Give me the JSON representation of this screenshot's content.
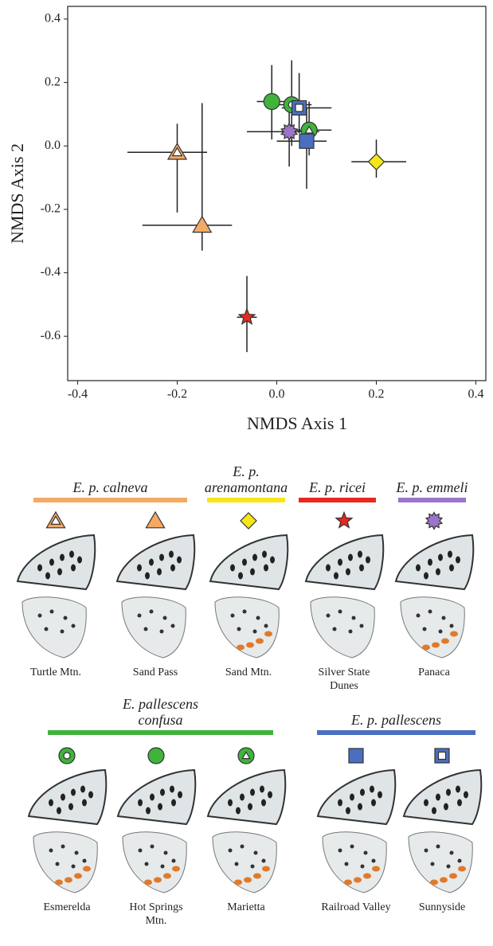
{
  "chart_data": {
    "type": "scatter",
    "x_label": "NMDS Axis 1",
    "y_label": "NMDS Axis 2",
    "xlim": [
      -0.42,
      0.42
    ],
    "ylim": [
      -0.74,
      0.44
    ],
    "xticks": [
      -0.4,
      -0.2,
      {
        "value": 0,
        "label": "0.0"
      },
      0.2,
      0.4
    ],
    "yticks": [
      0.4,
      0.2,
      {
        "value": 0,
        "label": "0.0"
      },
      -0.2,
      -0.4,
      -0.6
    ],
    "groups": [
      {
        "name": "E. p. calneva",
        "color": "#f5a964"
      },
      {
        "name": "E. p. arenamontana",
        "color": "#f5e61a"
      },
      {
        "name": "E. p. ricei",
        "color": "#e8281e"
      },
      {
        "name": "E. p. emmeli",
        "color": "#9c74c8"
      },
      {
        "name": "E. pallescens confusa",
        "color": "#3fb33c"
      },
      {
        "name": "E. p. pallescens",
        "color": "#4a6fc0"
      }
    ],
    "series": [
      {
        "name": "Turtle Mtn.",
        "color": "#f5a964",
        "marker": "triangle-open",
        "x": [
          -0.2
        ],
        "values": [
          -0.02
        ],
        "x_low": [
          -0.3
        ],
        "x_high": [
          -0.14
        ],
        "y_low": [
          -0.21
        ],
        "y_high": [
          0.07
        ]
      },
      {
        "name": "Sand Pass",
        "color": "#f5a964",
        "marker": "triangle",
        "x": [
          -0.15
        ],
        "values": [
          -0.25
        ],
        "x_low": [
          -0.27
        ],
        "x_high": [
          -0.09
        ],
        "y_low": [
          -0.33
        ],
        "y_high": [
          0.135
        ]
      },
      {
        "name": "Sand Mtn.",
        "color": "#f5e61a",
        "marker": "diamond",
        "x": [
          0.2
        ],
        "values": [
          -0.05
        ],
        "x_low": [
          0.15
        ],
        "x_high": [
          0.26
        ],
        "y_low": [
          -0.1
        ],
        "y_high": [
          0.02
        ]
      },
      {
        "name": "Silver State Dunes",
        "color": "#e8281e",
        "marker": "star",
        "x": [
          -0.06
        ],
        "values": [
          -0.54
        ],
        "x_low": [
          -0.08
        ],
        "x_high": [
          -0.04
        ],
        "y_low": [
          -0.65
        ],
        "y_high": [
          -0.41
        ]
      },
      {
        "name": "Panaca",
        "color": "#9c74c8",
        "marker": "burst",
        "x": [
          0.025
        ],
        "values": [
          0.045
        ],
        "x_low": [
          -0.06
        ],
        "x_high": [
          0.085
        ],
        "y_low": [
          -0.065
        ],
        "y_high": [
          0.15
        ]
      },
      {
        "name": "Esmerelda",
        "color": "#3fb33c",
        "marker": "circle-dot",
        "x": [
          0.03
        ],
        "values": [
          0.13
        ],
        "x_low": [
          0.0
        ],
        "x_high": [
          0.07
        ],
        "y_low": [
          0.0
        ],
        "y_high": [
          0.27
        ]
      },
      {
        "name": "Hot Springs Mtn.",
        "color": "#3fb33c",
        "marker": "circle",
        "x": [
          -0.01
        ],
        "values": [
          0.14
        ],
        "x_low": [
          -0.04
        ],
        "x_high": [
          0.03
        ],
        "y_low": [
          0.02
        ],
        "y_high": [
          0.255
        ]
      },
      {
        "name": "Marietta",
        "color": "#3fb33c",
        "marker": "circle-triangle",
        "x": [
          0.065
        ],
        "values": [
          0.05
        ],
        "x_low": [
          0.04
        ],
        "x_high": [
          0.11
        ],
        "y_low": [
          -0.03
        ],
        "y_high": [
          0.14
        ]
      },
      {
        "name": "Railroad Valley",
        "color": "#4a6fc0",
        "marker": "square",
        "x": [
          0.06
        ],
        "values": [
          0.015
        ],
        "x_low": [
          0.0
        ],
        "x_high": [
          0.1
        ],
        "y_low": [
          -0.135
        ],
        "y_high": [
          0.12
        ]
      },
      {
        "name": "Sunnyside",
        "color": "#4a6fc0",
        "marker": "square-open",
        "x": [
          0.045
        ],
        "values": [
          0.12
        ],
        "x_low": [
          0.01
        ],
        "x_high": [
          0.11
        ],
        "y_low": [
          0.04
        ],
        "y_high": [
          0.23
        ]
      }
    ]
  }
}
